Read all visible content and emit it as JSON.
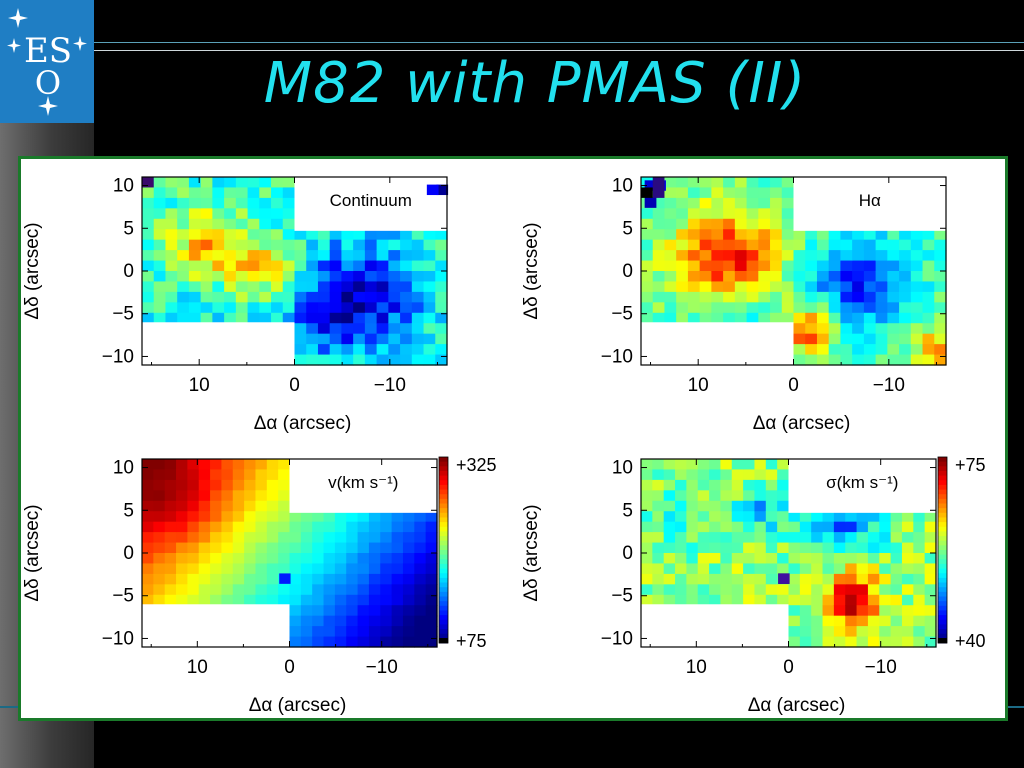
{
  "slide": {
    "title": "M82 with PMAS (II)",
    "logo_text": {
      "top": "ES",
      "bottom": "O"
    }
  },
  "colors": {
    "background": "#000000",
    "title": "#22e0ee",
    "logo_blue": "#1f7ec4",
    "frame_border": "#1a7a2a"
  },
  "chart_data": [
    {
      "type": "heatmap",
      "title": "Continuum",
      "xlabel": "Δα (arcsec)",
      "ylabel": "Δδ (arcsec)",
      "xlim": [
        16,
        -16
      ],
      "ylim": [
        -11,
        11
      ],
      "xticks": [
        "10",
        "0",
        "−10"
      ],
      "yticks": [
        "10",
        "5",
        "0",
        "−5",
        "−10"
      ]
    },
    {
      "type": "heatmap",
      "title": "Hα",
      "xlabel": "Δα (arcsec)",
      "ylabel": "Δδ (arcsec)",
      "xlim": [
        16,
        -16
      ],
      "ylim": [
        -11,
        11
      ],
      "xticks": [
        "10",
        "0",
        "−10"
      ],
      "yticks": [
        "10",
        "5",
        "0",
        "−5",
        "−10"
      ]
    },
    {
      "type": "heatmap",
      "title": "v(km s⁻¹)",
      "xlabel": "Δα (arcsec)",
      "ylabel": "Δδ (arcsec)",
      "xlim": [
        16,
        -16
      ],
      "ylim": [
        -11,
        11
      ],
      "xticks": [
        "10",
        "0",
        "−10"
      ],
      "yticks": [
        "10",
        "5",
        "0",
        "−5",
        "−10"
      ],
      "colorbar": {
        "max": "+325",
        "min": "+75"
      }
    },
    {
      "type": "heatmap",
      "title": "σ(km s⁻¹)",
      "xlabel": "Δα (arcsec)",
      "ylabel": "Δδ (arcsec)",
      "xlim": [
        16,
        -16
      ],
      "ylim": [
        -11,
        11
      ],
      "xticks": [
        "10",
        "0",
        "−10"
      ],
      "yticks": [
        "10",
        "5",
        "0",
        "−5",
        "−10"
      ],
      "colorbar": {
        "max": "+75",
        "min": "+40"
      }
    }
  ]
}
